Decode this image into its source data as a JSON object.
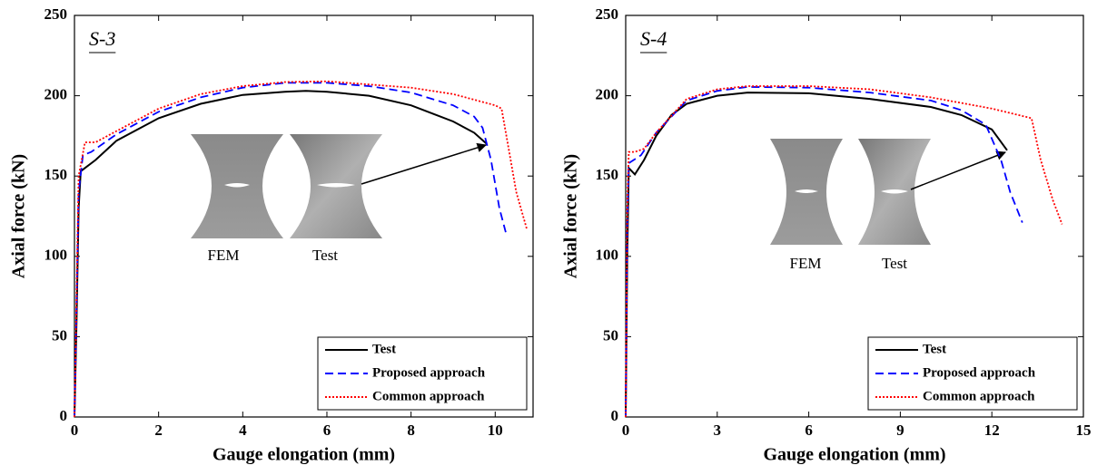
{
  "chart_data": [
    {
      "type": "line",
      "panel_label": "S-3",
      "xlabel": "Gauge elongation (mm)",
      "ylabel": "Axial force (kN)",
      "xlim": [
        0,
        10.9
      ],
      "ylim": [
        0,
        250
      ],
      "xticks": [
        0,
        2,
        4,
        6,
        8,
        10
      ],
      "yticks": [
        0,
        50,
        100,
        150,
        200,
        250
      ],
      "legend": "lower right",
      "annotations": [
        "FEM",
        "Test"
      ],
      "series": [
        {
          "name": "Test",
          "color": "#000000",
          "style": "solid",
          "x": [
            0,
            0.05,
            0.1,
            0.15,
            0.3,
            0.5,
            1,
            2,
            3,
            4,
            5,
            5.5,
            6,
            7,
            8,
            9,
            9.5,
            9.8
          ],
          "values": [
            0,
            60,
            130,
            153,
            156,
            160,
            172,
            186,
            195,
            200.5,
            202.5,
            203,
            202.5,
            200,
            194,
            184,
            177,
            170
          ]
        },
        {
          "name": "Proposed approach",
          "color": "#0000ff",
          "style": "dashed",
          "x": [
            0,
            0.1,
            0.2,
            0.4,
            1,
            2,
            3,
            4,
            5,
            6,
            7,
            8,
            9,
            9.5,
            9.7,
            9.9,
            10.1,
            10.25
          ],
          "values": [
            0,
            140,
            163,
            165,
            176,
            190,
            199,
            205,
            208,
            208,
            206,
            202,
            194,
            187,
            180,
            160,
            130,
            115
          ]
        },
        {
          "name": "Common approach",
          "color": "#ff0000",
          "style": "dotted",
          "x": [
            0,
            0.1,
            0.25,
            0.5,
            1,
            2,
            3,
            4,
            5,
            6,
            7,
            8,
            9,
            10,
            10.15,
            10.3,
            10.5,
            10.75
          ],
          "values": [
            0,
            150,
            171,
            171,
            178,
            192,
            201,
            206,
            208.5,
            209,
            207,
            205,
            201,
            194,
            192,
            170,
            140,
            117
          ]
        }
      ]
    },
    {
      "type": "line",
      "panel_label": "S-4",
      "xlabel": "Gauge elongation (mm)",
      "ylabel": "Axial force (kN)",
      "xlim": [
        0,
        15
      ],
      "ylim": [
        0,
        250
      ],
      "xticks": [
        0,
        3,
        6,
        9,
        12,
        15
      ],
      "yticks": [
        0,
        50,
        100,
        150,
        200,
        250
      ],
      "legend": "lower right",
      "annotations": [
        "FEM",
        "Test"
      ],
      "series": [
        {
          "name": "Test",
          "color": "#000000",
          "style": "solid",
          "x": [
            0,
            0.05,
            0.1,
            0.3,
            0.6,
            1,
            1.5,
            2,
            3,
            4,
            6,
            8,
            10,
            11,
            12,
            12.5
          ],
          "values": [
            0,
            100,
            155,
            151,
            160,
            175,
            188,
            195,
            200,
            202,
            201.5,
            198,
            193,
            188,
            179,
            166
          ]
        },
        {
          "name": "Proposed approach",
          "color": "#0000ff",
          "style": "dashed",
          "x": [
            0,
            0.05,
            0.1,
            0.5,
            1,
            2,
            3,
            4,
            6,
            8,
            10,
            11,
            11.8,
            12.3,
            12.6,
            13
          ],
          "values": [
            0,
            120,
            158,
            163,
            177,
            197,
            203,
            205.5,
            205,
            202,
            197,
            191,
            182,
            160,
            140,
            121
          ]
        },
        {
          "name": "Common approach",
          "color": "#ff0000",
          "style": "dotted",
          "x": [
            0,
            0.05,
            0.1,
            0.3,
            0.6,
            1,
            2,
            3,
            4,
            6,
            8,
            10,
            12,
            13.3,
            13.6,
            14,
            14.3
          ],
          "values": [
            0,
            130,
            165,
            165,
            167,
            177,
            198,
            204,
            206,
            206,
            204,
            199,
            192,
            186,
            160,
            135,
            120
          ]
        }
      ]
    }
  ]
}
